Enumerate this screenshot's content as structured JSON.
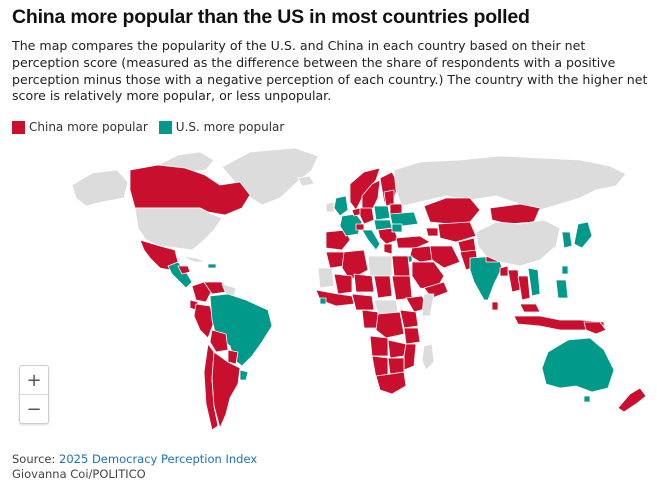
{
  "title": "China more popular than the US in most countries polled",
  "subtitle": "The map compares the popularity of the U.S. and China in each country based on their net perception score (measured as the difference between the share of respondents with a positive perception minus those with a negative perception of each country.) The country with the higher net score is relatively more popular, or less unpopular.",
  "legend": [
    {
      "label": "China more popular",
      "color": "#c8102e"
    },
    {
      "label": "U.S. more popular",
      "color": "#00998a"
    }
  ],
  "colors": {
    "china": "#c8102e",
    "us": "#00998a",
    "no_data": "#dcdcdc"
  },
  "zoom": {
    "in": "+",
    "out": "−"
  },
  "source": {
    "prefix": "Source: ",
    "link_text": "2025 Democracy Perception Index"
  },
  "credit": "Giovanna Coi/POLITICO"
}
